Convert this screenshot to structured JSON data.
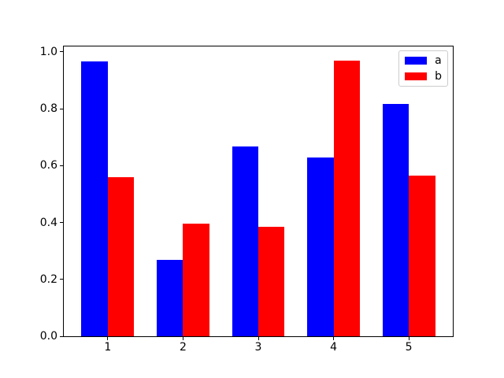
{
  "chart_data": {
    "type": "bar",
    "title": "",
    "xlabel": "",
    "ylabel": "",
    "categories": [
      "1",
      "2",
      "3",
      "4",
      "5"
    ],
    "series": [
      {
        "name": "a",
        "color": "#0000ff",
        "values": [
          0.967,
          0.269,
          0.666,
          0.629,
          0.817
        ]
      },
      {
        "name": "b",
        "color": "#ff0000",
        "values": [
          0.56,
          0.395,
          0.385,
          0.969,
          0.564
        ]
      }
    ],
    "bar_width_data_units": 0.35,
    "xlim": [
      0.415,
      5.585
    ],
    "ylim": [
      0,
      1.019
    ],
    "yticks": [
      {
        "value": 0.0,
        "label": "0.0"
      },
      {
        "value": 0.2,
        "label": "0.2"
      },
      {
        "value": 0.4,
        "label": "0.4"
      },
      {
        "value": 0.6,
        "label": "0.6"
      },
      {
        "value": 0.8,
        "label": "0.8"
      },
      {
        "value": 1.0,
        "label": "1.0"
      }
    ],
    "xticks": [
      {
        "value": 1,
        "label": "1"
      },
      {
        "value": 2,
        "label": "2"
      },
      {
        "value": 3,
        "label": "3"
      },
      {
        "value": 4,
        "label": "4"
      },
      {
        "value": 5,
        "label": "5"
      }
    ],
    "grid": false,
    "legend": {
      "position": "upper right",
      "entries": [
        {
          "label": "a",
          "color": "#0000ff"
        },
        {
          "label": "b",
          "color": "#ff0000"
        }
      ]
    },
    "colors": {
      "figure_background": "#ffffff",
      "axes_background": "#ffffff",
      "spine": "#000000",
      "tick_label": "#000000",
      "legend_border": "#cccccc"
    }
  }
}
